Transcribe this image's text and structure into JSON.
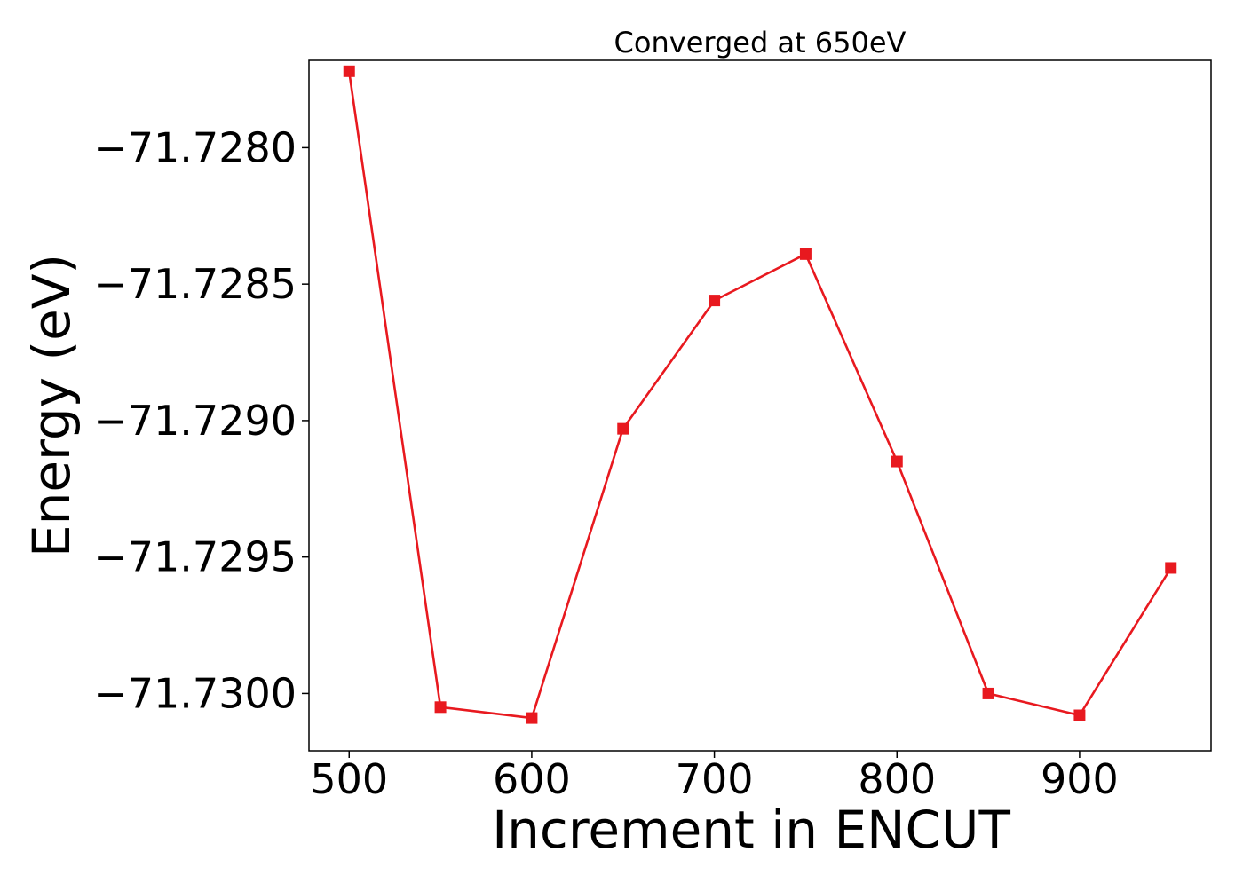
{
  "chart_data": {
    "type": "line",
    "title": "Converged at 650eV",
    "xlabel": "Increment in ENCUT",
    "ylabel": "Energy (eV)",
    "xlim": [
      478,
      972
    ],
    "ylim": [
      -71.73021,
      -71.72768
    ],
    "x_ticks": [
      500,
      600,
      700,
      800,
      900
    ],
    "x_tick_labels": [
      "500",
      "600",
      "700",
      "800",
      "900"
    ],
    "y_ticks": [
      -71.728,
      -71.7285,
      -71.729,
      -71.7295,
      -71.73
    ],
    "y_tick_labels": [
      "−71.7280",
      "−71.7285",
      "−71.7290",
      "−71.7295",
      "−71.7300"
    ],
    "grid": false,
    "series": [
      {
        "color": "#e8191f",
        "marker": "square",
        "x": [
          500,
          550,
          600,
          650,
          700,
          750,
          800,
          850,
          900,
          950
        ],
        "y": [
          -71.72772,
          -71.73005,
          -71.73009,
          -71.72903,
          -71.72856,
          -71.72839,
          -71.72915,
          -71.73,
          -71.73008,
          -71.72954
        ]
      }
    ]
  }
}
